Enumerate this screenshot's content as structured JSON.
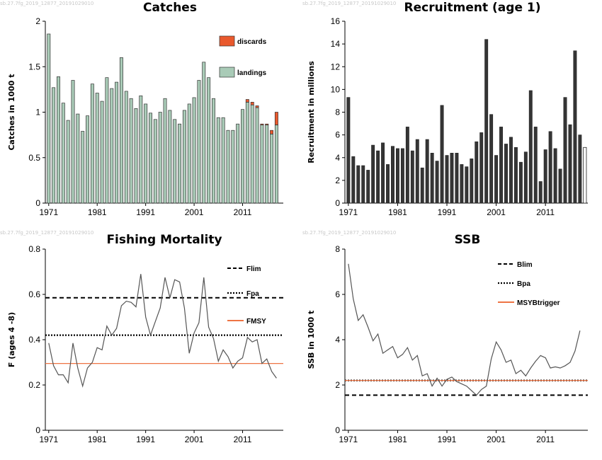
{
  "watermark": "sb.27.7fg_2019_12877_20191029010",
  "colors": {
    "landings": "#a9cbb7",
    "discards": "#e9592d",
    "recruit": "#353535",
    "line": "#555555",
    "ref_black": "#000000",
    "ref_orange": "#ee7444"
  },
  "chart_data": [
    {
      "id": "catches",
      "type": "bar",
      "title": "Catches",
      "ylabel": "Catches in 1000 t",
      "xlabel": "",
      "x_ticks": [
        1971,
        1981,
        1991,
        2001,
        2011
      ],
      "y_ticks": [
        "0",
        "0.5",
        "1",
        "1.5",
        "2"
      ],
      "ylim": [
        0,
        2
      ],
      "stacked": true,
      "legend_position": "top-right",
      "x": [
        1971,
        1972,
        1973,
        1974,
        1975,
        1976,
        1977,
        1978,
        1979,
        1980,
        1981,
        1982,
        1983,
        1984,
        1985,
        1986,
        1987,
        1988,
        1989,
        1990,
        1991,
        1992,
        1993,
        1994,
        1995,
        1996,
        1997,
        1998,
        1999,
        2000,
        2001,
        2002,
        2003,
        2004,
        2005,
        2006,
        2007,
        2008,
        2009,
        2010,
        2011,
        2012,
        2013,
        2014,
        2015,
        2016,
        2017,
        2018
      ],
      "series": [
        {
          "name": "landings",
          "values": [
            1.86,
            1.27,
            1.39,
            1.1,
            0.91,
            1.35,
            0.98,
            0.79,
            0.96,
            1.31,
            1.21,
            1.12,
            1.38,
            1.26,
            1.33,
            1.6,
            1.23,
            1.15,
            1.04,
            1.18,
            1.09,
            0.99,
            0.92,
            1.0,
            1.15,
            1.02,
            0.92,
            0.87,
            1.02,
            1.09,
            1.16,
            1.35,
            1.55,
            1.38,
            1.15,
            0.94,
            0.94,
            0.8,
            0.8,
            0.87,
            1.03,
            1.11,
            1.08,
            1.05,
            0.86,
            0.86,
            0.76,
            0.86
          ]
        },
        {
          "name": "discards",
          "values": [
            0,
            0,
            0,
            0,
            0,
            0,
            0,
            0,
            0,
            0,
            0,
            0,
            0,
            0,
            0,
            0,
            0,
            0,
            0,
            0,
            0,
            0,
            0,
            0,
            0,
            0,
            0,
            0,
            0,
            0,
            0,
            0,
            0,
            0,
            0,
            0,
            0,
            0,
            0,
            0,
            0,
            0.03,
            0.03,
            0.02,
            0.01,
            0.01,
            0.04,
            0.14
          ]
        }
      ]
    },
    {
      "id": "recruitment",
      "type": "bar",
      "title": "Recruitment (age 1)",
      "ylabel": "Recruitment in millions",
      "xlabel": "",
      "x_ticks": [
        1971,
        1981,
        1991,
        2001,
        2011
      ],
      "y_ticks": [
        "0",
        "2",
        "4",
        "6",
        "8",
        "10",
        "12",
        "14",
        "16"
      ],
      "ylim": [
        0,
        16
      ],
      "x": [
        1971,
        1972,
        1973,
        1974,
        1975,
        1976,
        1977,
        1978,
        1979,
        1980,
        1981,
        1982,
        1983,
        1984,
        1985,
        1986,
        1987,
        1988,
        1989,
        1990,
        1991,
        1992,
        1993,
        1994,
        1995,
        1996,
        1997,
        1998,
        1999,
        2000,
        2001,
        2002,
        2003,
        2004,
        2005,
        2006,
        2007,
        2008,
        2009,
        2010,
        2011,
        2012,
        2013,
        2014,
        2015,
        2016,
        2017,
        2018
      ],
      "values": [
        9.3,
        4.1,
        3.3,
        3.3,
        2.9,
        5.1,
        4.6,
        5.3,
        3.4,
        5.0,
        4.8,
        4.8,
        6.7,
        4.6,
        5.6,
        3.1,
        5.6,
        4.4,
        3.7,
        8.6,
        4.2,
        4.4,
        4.4,
        3.4,
        3.2,
        3.9,
        5.4,
        6.2,
        14.4,
        7.8,
        4.2,
        6.7,
        5.2,
        5.8,
        4.9,
        3.6,
        4.5,
        9.9,
        6.7,
        1.9,
        4.7,
        6.3,
        4.8,
        3.0,
        9.3,
        6.9,
        13.4,
        6.0
      ],
      "last_value": 4.9,
      "last_year": 2019
    },
    {
      "id": "fishing_mortality",
      "type": "line",
      "title": "Fishing Mortality",
      "ylabel": "F (ages 4 -8)",
      "xlabel": "",
      "x_ticks": [
        1971,
        1981,
        1991,
        2001,
        2011
      ],
      "y_ticks": [
        "0",
        "0.2",
        "0.4",
        "0.6",
        "0.8"
      ],
      "ylim": [
        0,
        0.8
      ],
      "legend_position": "top-right",
      "x": [
        1971,
        1972,
        1973,
        1974,
        1975,
        1976,
        1977,
        1978,
        1979,
        1980,
        1981,
        1982,
        1983,
        1984,
        1985,
        1986,
        1987,
        1988,
        1989,
        1990,
        1991,
        1992,
        1993,
        1994,
        1995,
        1996,
        1997,
        1998,
        1999,
        2000,
        2001,
        2002,
        2003,
        2004,
        2005,
        2006,
        2007,
        2008,
        2009,
        2010,
        2011,
        2012,
        2013,
        2014,
        2015,
        2016,
        2017,
        2018
      ],
      "values": [
        0.385,
        0.285,
        0.245,
        0.245,
        0.21,
        0.385,
        0.275,
        0.195,
        0.275,
        0.3,
        0.365,
        0.355,
        0.46,
        0.42,
        0.45,
        0.55,
        0.57,
        0.565,
        0.545,
        0.69,
        0.5,
        0.42,
        0.48,
        0.54,
        0.675,
        0.585,
        0.665,
        0.655,
        0.54,
        0.34,
        0.43,
        0.475,
        0.675,
        0.455,
        0.405,
        0.305,
        0.355,
        0.325,
        0.275,
        0.305,
        0.32,
        0.41,
        0.39,
        0.4,
        0.295,
        0.315,
        0.26,
        0.23
      ],
      "reference_lines": [
        {
          "name": "Flim",
          "value": 0.585,
          "style": "dashed",
          "color": "#000000"
        },
        {
          "name": "Fpa",
          "value": 0.42,
          "style": "dotted",
          "color": "#000000"
        },
        {
          "name": "FMSY",
          "value": 0.295,
          "style": "solid",
          "color": "#ee7444"
        }
      ]
    },
    {
      "id": "ssb",
      "type": "line",
      "title": "SSB",
      "ylabel": "SSB in 1000 t",
      "xlabel": "",
      "x_ticks": [
        1971,
        1981,
        1991,
        2001,
        2011
      ],
      "y_ticks": [
        "0",
        "2",
        "4",
        "6",
        "8"
      ],
      "ylim": [
        0,
        8
      ],
      "legend_position": "top-right",
      "x": [
        1971,
        1972,
        1973,
        1974,
        1975,
        1976,
        1977,
        1978,
        1979,
        1980,
        1981,
        1982,
        1983,
        1984,
        1985,
        1986,
        1987,
        1988,
        1989,
        1990,
        1991,
        1992,
        1993,
        1994,
        1995,
        1996,
        1997,
        1998,
        1999,
        2000,
        2001,
        2002,
        2003,
        2004,
        2005,
        2006,
        2007,
        2008,
        2009,
        2010,
        2011,
        2012,
        2013,
        2014,
        2015,
        2016,
        2017,
        2018,
        2019
      ],
      "values": [
        7.35,
        5.8,
        4.85,
        5.1,
        4.55,
        3.95,
        4.25,
        3.4,
        3.55,
        3.7,
        3.2,
        3.35,
        3.65,
        3.1,
        3.3,
        2.4,
        2.5,
        1.95,
        2.3,
        1.95,
        2.25,
        2.35,
        2.15,
        2.05,
        1.95,
        1.75,
        1.55,
        1.8,
        1.95,
        3.15,
        3.9,
        3.55,
        3.0,
        3.1,
        2.5,
        2.65,
        2.4,
        2.75,
        3.05,
        3.3,
        3.2,
        2.75,
        2.8,
        2.75,
        2.85,
        3.0,
        3.5,
        4.4,
        null
      ],
      "reference_lines": [
        {
          "name": "Blim",
          "value": 1.55,
          "style": "dashed",
          "color": "#000000"
        },
        {
          "name": "Bpa",
          "value": 2.2,
          "style": "dotted",
          "color": "#000000"
        },
        {
          "name": "MSYBtrigger",
          "value": 2.2,
          "style": "solid",
          "color": "#ee7444"
        }
      ]
    }
  ]
}
